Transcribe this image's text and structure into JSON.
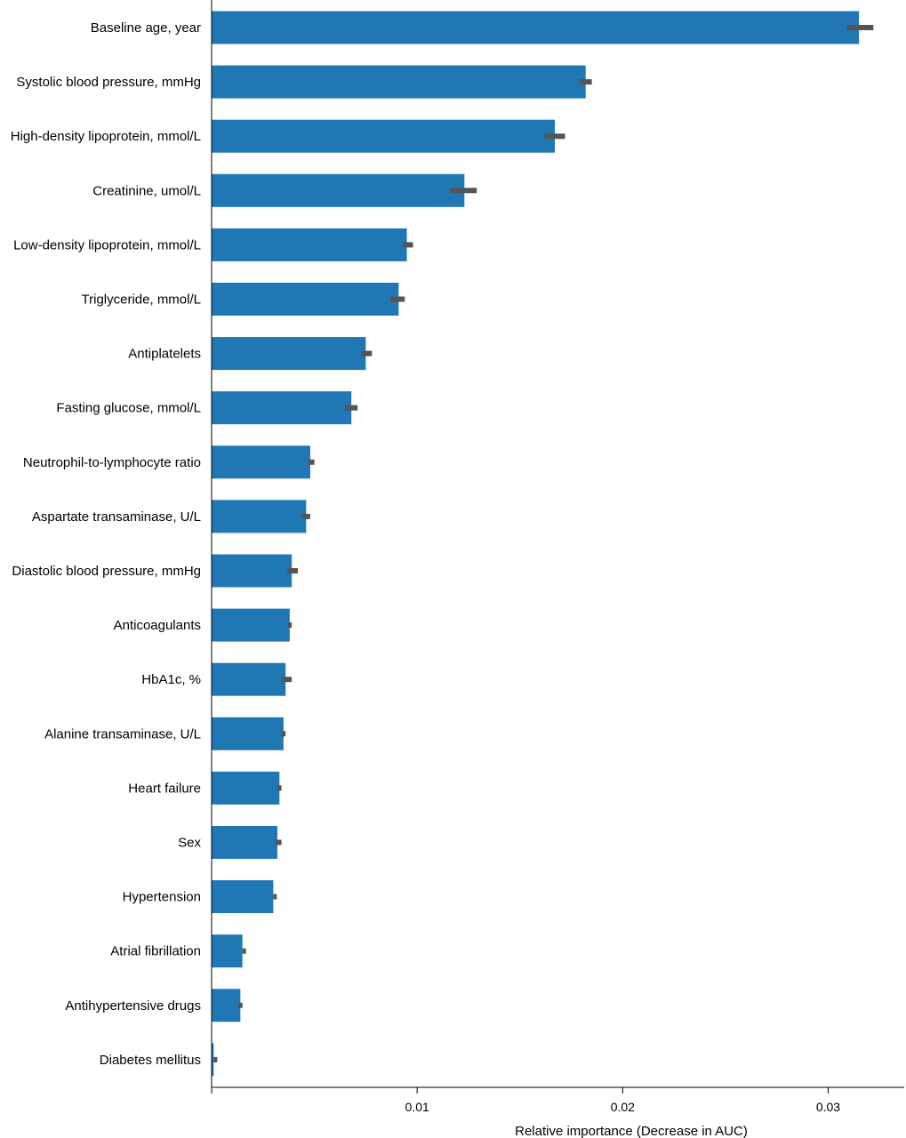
{
  "chart_data": {
    "type": "bar",
    "orientation": "horizontal",
    "categories": [
      "Baseline age, year",
      "Systolic blood pressure, mmHg",
      "High-density lipoprotein, mmol/L",
      "Creatinine, umol/L",
      "Low-density lipoprotein, mmol/L",
      "Triglyceride, mmol/L",
      "Antiplatelets",
      "Fasting glucose, mmol/L",
      "Neutrophil-to-lymphocyte ratio",
      "Aspartate transaminase, U/L",
      "Diastolic blood pressure, mmHg",
      "Anticoagulants",
      "HbA1c, %",
      "Alanine transaminase, U/L",
      "Heart failure",
      "Sex",
      "Hypertension",
      "Atrial fibrillation",
      "Antihypertensive drugs",
      "Diabetes mellitus"
    ],
    "values": [
      0.0315,
      0.0182,
      0.0167,
      0.0123,
      0.0095,
      0.0091,
      0.0075,
      0.0068,
      0.0048,
      0.0046,
      0.0039,
      0.0038,
      0.0036,
      0.0035,
      0.0033,
      0.0032,
      0.003,
      0.0015,
      0.0014,
      0.0001
    ],
    "error_low": [
      0.0309,
      0.0179,
      0.0162,
      0.0116,
      0.0093,
      0.0087,
      0.0073,
      0.0065,
      0.0047,
      0.0044,
      0.0037,
      0.0037,
      0.0034,
      0.0034,
      0.0032,
      0.0031,
      0.003,
      0.0015,
      0.0013,
      0.0001
    ],
    "error_high": [
      0.0322,
      0.0185,
      0.0172,
      0.0129,
      0.0098,
      0.0094,
      0.0078,
      0.0071,
      0.005,
      0.0048,
      0.0042,
      0.0039,
      0.0039,
      0.0036,
      0.0034,
      0.0034,
      0.0031,
      0.0016,
      0.0015,
      0.0002
    ],
    "xticks": [
      0.01,
      0.02,
      0.03
    ],
    "xtick_labels": [
      "0.01",
      "0.02",
      "0.03"
    ],
    "xlim": [
      0,
      0.0337
    ],
    "xlabel": "Relative importance (Decrease in AUC)",
    "ylabel": "",
    "title": "",
    "grid": false,
    "bar_color": "#1f77b4",
    "error_color": "#555555",
    "axis_color": "#000000"
  }
}
